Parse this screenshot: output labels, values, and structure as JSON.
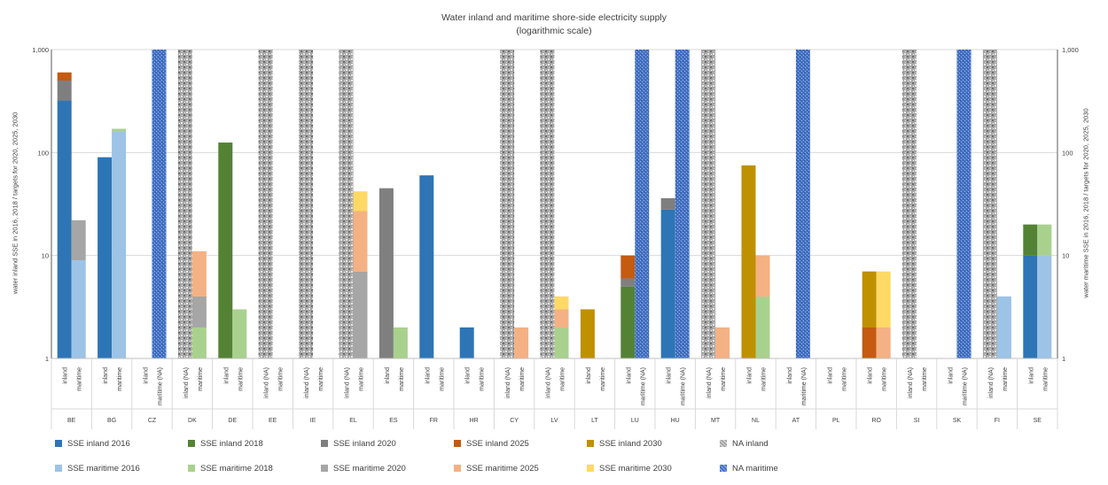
{
  "chart_data": {
    "type": "bar",
    "title": "Water inland and maritime shore-side electricity supply",
    "subtitle": "(logarithmic scale)",
    "ylabel_left": "water inland SSE in 2016, 2018 / targets for 2020, 2025, 2030",
    "ylabel_right": "water maritime SSE in 2016, 2018 / targets for 2020, 2025, 2030",
    "yscale": "log",
    "ylim": [
      1,
      1000
    ],
    "yticks": [
      "1",
      "10",
      "100",
      "1,000"
    ],
    "grid": true,
    "legend_position": "bottom",
    "colors": {
      "SSE inland 2016": "#2e75b6",
      "SSE inland 2018": "#548235",
      "SSE inland 2020": "#7f7f7f",
      "SSE inland 2025": "#c55a11",
      "SSE inland 2030": "#bf9000",
      "NA inland": "#a6a6a6",
      "SSE maritime 2016": "#9dc3e6",
      "SSE maritime 2018": "#a9d18e",
      "SSE maritime 2020": "#a6a6a6",
      "SSE maritime 2025": "#f4b183",
      "SSE maritime 2030": "#ffd966",
      "NA maritime": "#4472c4"
    },
    "legend": [
      [
        "SSE inland 2016",
        "SSE inland 2018",
        "SSE inland 2020",
        "SSE inland 2025",
        "SSE inland 2030",
        "NA inland"
      ],
      [
        "SSE maritime 2016",
        "SSE maritime 2018",
        "SSE maritime 2020",
        "SSE maritime 2025",
        "SSE maritime 2030",
        "NA maritime"
      ]
    ],
    "countries": [
      {
        "code": "BE",
        "inland": {
          "label": "inland",
          "cum": [
            320,
            320,
            500,
            600,
            600
          ]
        },
        "maritime": {
          "label": "maritime",
          "cum": [
            9,
            9,
            22,
            22,
            22
          ]
        }
      },
      {
        "code": "BG",
        "inland": {
          "label": "inland",
          "cum": [
            90,
            90,
            90,
            90,
            90
          ]
        },
        "maritime": {
          "label": "maritime",
          "cum": [
            160,
            170,
            170,
            170,
            170
          ]
        }
      },
      {
        "code": "CZ",
        "inland": {
          "label": "inland",
          "cum": [
            0,
            0,
            0,
            0,
            0
          ]
        },
        "maritime": {
          "label": "maritime (NA)",
          "na": true
        }
      },
      {
        "code": "DK",
        "inland": {
          "label": "inland (NA)",
          "na": true
        },
        "maritime": {
          "label": "maritime",
          "cum": [
            1,
            2,
            4,
            11,
            11
          ]
        }
      },
      {
        "code": "DE",
        "inland": {
          "label": "inland",
          "cum": [
            1,
            125,
            125,
            125,
            125
          ]
        },
        "maritime": {
          "label": "maritime",
          "cum": [
            1,
            3,
            3,
            3,
            3
          ]
        }
      },
      {
        "code": "EE",
        "inland": {
          "label": "inland (NA)",
          "na": true
        },
        "maritime": {
          "label": "maritime",
          "cum": [
            0,
            0,
            0,
            0,
            0
          ]
        }
      },
      {
        "code": "IE",
        "inland": {
          "label": "inland (NA)",
          "na": true
        },
        "maritime": {
          "label": "maritime",
          "cum": [
            0,
            0,
            0,
            0,
            0
          ]
        }
      },
      {
        "code": "EL",
        "inland": {
          "label": "inland (NA)",
          "na": true
        },
        "maritime": {
          "label": "maritime",
          "cum": [
            1,
            1,
            7,
            27,
            42
          ]
        }
      },
      {
        "code": "ES",
        "inland": {
          "label": "inland",
          "cum": [
            0,
            0,
            45,
            45,
            45
          ]
        },
        "maritime": {
          "label": "maritime",
          "cum": [
            1,
            2,
            2,
            2,
            2
          ]
        }
      },
      {
        "code": "FR",
        "inland": {
          "label": "inland",
          "cum": [
            60,
            60,
            60,
            60,
            60
          ]
        },
        "maritime": {
          "label": "maritime",
          "cum": [
            0,
            0,
            0,
            0,
            0
          ]
        }
      },
      {
        "code": "HR",
        "inland": {
          "label": "inland",
          "cum": [
            2,
            2,
            2,
            2,
            2
          ]
        },
        "maritime": {
          "label": "maritime",
          "cum": [
            0,
            0,
            0,
            0,
            0
          ]
        }
      },
      {
        "code": "CY",
        "inland": {
          "label": "inland (NA)",
          "na": true
        },
        "maritime": {
          "label": "maritime",
          "cum": [
            1,
            1,
            1,
            2,
            2
          ]
        }
      },
      {
        "code": "LV",
        "inland": {
          "label": "inland (NA)",
          "na": true
        },
        "maritime": {
          "label": "maritime",
          "cum": [
            1,
            2,
            2,
            3,
            4
          ]
        }
      },
      {
        "code": "LT",
        "inland": {
          "label": "inland",
          "cum": [
            1,
            1,
            1,
            1,
            3
          ]
        },
        "maritime": {
          "label": "maritime",
          "cum": [
            0,
            0,
            0,
            0,
            0
          ]
        }
      },
      {
        "code": "LU",
        "inland": {
          "label": "inland",
          "cum": [
            1,
            5,
            6,
            10,
            10
          ]
        },
        "maritime": {
          "label": "maritime (NA)",
          "na": true
        }
      },
      {
        "code": "HU",
        "inland": {
          "label": "inland",
          "cum": [
            28,
            28,
            36,
            36,
            36
          ]
        },
        "maritime": {
          "label": "maritime (NA)",
          "na": true
        }
      },
      {
        "code": "MT",
        "inland": {
          "label": "inland (NA)",
          "na": true
        },
        "maritime": {
          "label": "maritime",
          "cum": [
            1,
            1,
            1,
            2,
            2
          ]
        }
      },
      {
        "code": "NL",
        "inland": {
          "label": "inland",
          "cum": [
            1,
            1,
            1,
            1,
            75
          ]
        },
        "maritime": {
          "label": "maritime",
          "cum": [
            1,
            4,
            4,
            10,
            10
          ]
        }
      },
      {
        "code": "AT",
        "inland": {
          "label": "inland",
          "cum": [
            0,
            0,
            0,
            0,
            0
          ]
        },
        "maritime": {
          "label": "maritime (NA)",
          "na": true
        }
      },
      {
        "code": "PL",
        "inland": {
          "label": "inland",
          "cum": [
            0,
            0,
            0,
            0,
            0
          ]
        },
        "maritime": {
          "label": "maritime",
          "cum": [
            0,
            0,
            0,
            0,
            0
          ]
        }
      },
      {
        "code": "RO",
        "inland": {
          "label": "inland",
          "cum": [
            1,
            1,
            1,
            2,
            7
          ]
        },
        "maritime": {
          "label": "maritime",
          "cum": [
            1,
            1,
            1,
            2,
            7
          ]
        }
      },
      {
        "code": "SI",
        "inland": {
          "label": "inland (NA)",
          "na": true
        },
        "maritime": {
          "label": "maritime",
          "cum": [
            0,
            0,
            0,
            0,
            0
          ]
        }
      },
      {
        "code": "SK",
        "inland": {
          "label": "inland",
          "cum": [
            0,
            0,
            0,
            0,
            0
          ]
        },
        "maritime": {
          "label": "maritime (NA)",
          "na": true
        }
      },
      {
        "code": "FI",
        "inland": {
          "label": "inland (NA)",
          "na": true
        },
        "maritime": {
          "label": "maritime",
          "cum": [
            4,
            4,
            4,
            4,
            4
          ]
        }
      },
      {
        "code": "SE",
        "inland": {
          "label": "inland",
          "cum": [
            10,
            20,
            20,
            20,
            20
          ]
        },
        "maritime": {
          "label": "maritime",
          "cum": [
            10,
            20,
            20,
            20,
            20
          ]
        }
      }
    ]
  }
}
